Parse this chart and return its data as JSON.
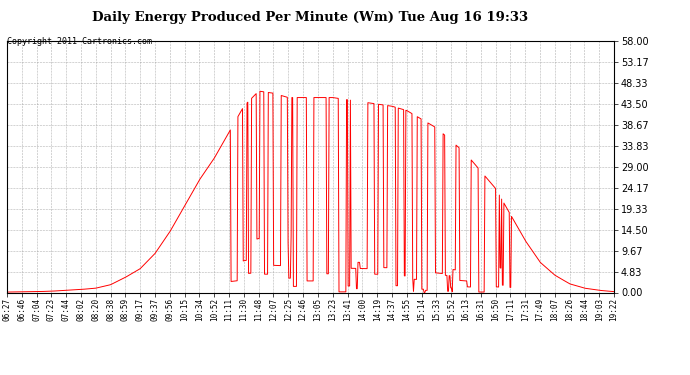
{
  "title": "Daily Energy Produced Per Minute (Wm) Tue Aug 16 19:33",
  "copyright": "Copyright 2011 Cartronics.com",
  "line_color": "#ff0000",
  "bg_color": "#ffffff",
  "plot_bg_color": "#ffffff",
  "grid_color": "#a0a0a0",
  "ylim": [
    0,
    58.0
  ],
  "yticks": [
    0.0,
    4.83,
    9.67,
    14.5,
    19.33,
    24.17,
    29.0,
    33.83,
    38.67,
    43.5,
    48.33,
    53.17,
    58.0
  ],
  "xtick_labels": [
    "06:27",
    "06:46",
    "07:04",
    "07:23",
    "07:44",
    "08:02",
    "08:20",
    "08:38",
    "08:59",
    "09:17",
    "09:37",
    "09:56",
    "10:15",
    "10:34",
    "10:52",
    "11:11",
    "11:30",
    "11:48",
    "12:07",
    "12:25",
    "12:46",
    "13:05",
    "13:23",
    "13:41",
    "14:00",
    "14:19",
    "14:37",
    "14:55",
    "15:14",
    "15:33",
    "15:52",
    "16:13",
    "16:31",
    "16:50",
    "17:11",
    "17:31",
    "17:49",
    "18:07",
    "18:26",
    "18:44",
    "19:03",
    "19:22"
  ],
  "envelope": [
    0.1,
    0.15,
    0.2,
    0.3,
    0.5,
    0.7,
    1.0,
    1.8,
    3.5,
    5.5,
    9.0,
    14.0,
    20.0,
    26.0,
    31.0,
    37.0,
    43.0,
    46.5,
    46.0,
    45.0,
    45.0,
    45.0,
    45.0,
    44.5,
    44.0,
    43.5,
    43.0,
    42.0,
    40.0,
    38.0,
    35.0,
    32.0,
    28.0,
    24.0,
    18.0,
    12.0,
    7.0,
    4.0,
    2.0,
    1.0,
    0.5,
    0.2
  ]
}
